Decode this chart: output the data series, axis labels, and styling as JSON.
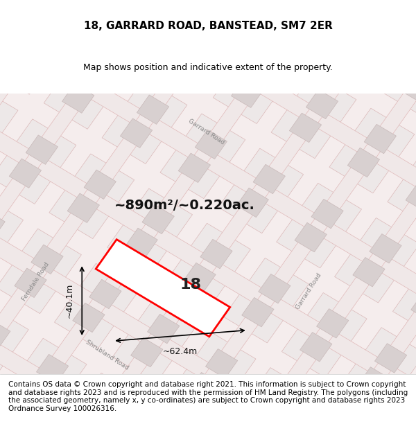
{
  "title": "18, GARRARD ROAD, BANSTEAD, SM7 2ER",
  "subtitle": "Map shows position and indicative extent of the property.",
  "area_text": "~890m²/~0.220ac.",
  "number_label": "18",
  "width_label": "~62.4m",
  "height_label": "~40.1m",
  "footer": "Contains OS data © Crown copyright and database right 2021. This information is subject to Crown copyright and database rights 2023 and is reproduced with the permission of HM Land Registry. The polygons (including the associated geometry, namely x, y co-ordinates) are subject to Crown copyright and database rights 2023 Ordnance Survey 100026316.",
  "bg_color": "#f5f0f0",
  "map_bg": "#f5f0f0",
  "plot_color": "#ff0000",
  "road_color": "#f0a0a0",
  "block_color": "#e0d8d8",
  "title_fontsize": 11,
  "subtitle_fontsize": 9,
  "annotation_fontsize": 13,
  "footer_fontsize": 7.5
}
